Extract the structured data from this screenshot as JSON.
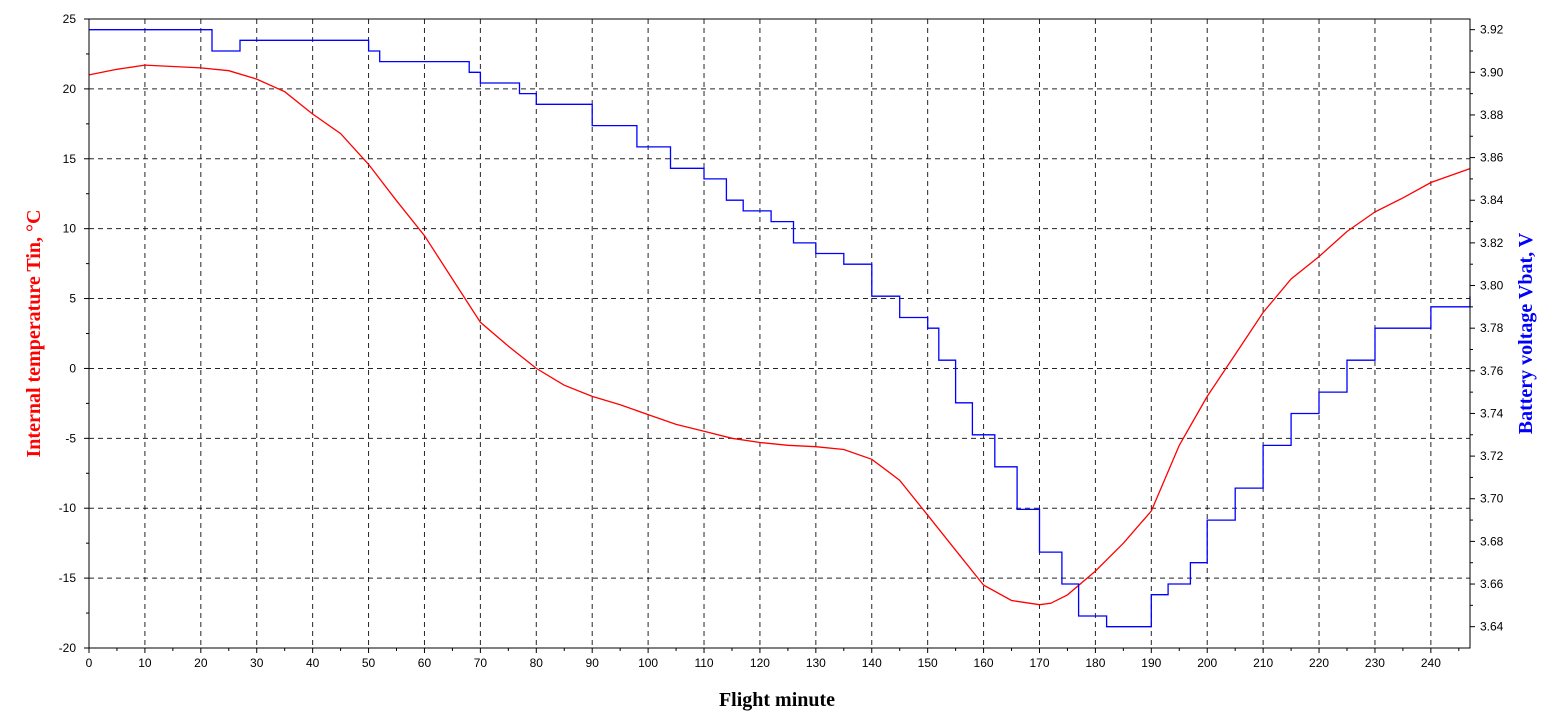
{
  "chart_data": {
    "type": "line",
    "xlabel": "Flight minute",
    "ylabel_left": "Internal temperature Tin, °C",
    "ylabel_right": "Battery voltage Vbat, V",
    "xlim": [
      0,
      247
    ],
    "ylim_left": [
      -20,
      25
    ],
    "ylim_right": [
      3.63,
      3.925
    ],
    "x_ticks": [
      0,
      10,
      20,
      30,
      40,
      50,
      60,
      70,
      80,
      90,
      100,
      110,
      120,
      130,
      140,
      150,
      160,
      170,
      180,
      190,
      200,
      210,
      220,
      230,
      240
    ],
    "y_left_ticks": [
      -20,
      -15,
      -10,
      -5,
      0,
      5,
      10,
      15,
      20,
      25
    ],
    "y_right_ticks": [
      "3.64",
      "3.66",
      "3.68",
      "3.70",
      "3.72",
      "3.74",
      "3.76",
      "3.78",
      "3.80",
      "3.82",
      "3.84",
      "3.86",
      "3.88",
      "3.90",
      "3.92"
    ],
    "grid": true,
    "colors": {
      "temperature": "#ff0000",
      "voltage": "#0000ff",
      "grid": "#000000"
    },
    "series": [
      {
        "axis": "left",
        "x": [
          0,
          5,
          10,
          15,
          20,
          25,
          30,
          35,
          40,
          45,
          50,
          55,
          60,
          65,
          70,
          75,
          80,
          85,
          90,
          95,
          100,
          105,
          110,
          115,
          120,
          125,
          130,
          135,
          140,
          145,
          150,
          155,
          160,
          165,
          170,
          172,
          175,
          180,
          185,
          190,
          195,
          200,
          205,
          210,
          215,
          220,
          225,
          230,
          235,
          240,
          247
        ],
        "y": [
          21.0,
          21.4,
          21.7,
          21.6,
          21.5,
          21.3,
          20.7,
          19.8,
          18.2,
          16.8,
          14.6,
          12.0,
          9.5,
          6.4,
          3.3,
          1.6,
          0.0,
          -1.2,
          -2.0,
          -2.6,
          -3.3,
          -4.0,
          -4.5,
          -5.0,
          -5.3,
          -5.5,
          -5.6,
          -5.8,
          -6.5,
          -8.0,
          -10.5,
          -13.0,
          -15.5,
          -16.6,
          -16.9,
          -16.8,
          -16.2,
          -14.5,
          -12.5,
          -10.2,
          -5.5,
          -2.0,
          1.0,
          4.0,
          6.4,
          8.0,
          9.8,
          11.2,
          12.2,
          13.3,
          14.3
        ]
      },
      {
        "axis": "right",
        "x": [
          0,
          10,
          20,
          22,
          27,
          35,
          45,
          50,
          52,
          60,
          68,
          70,
          77,
          80,
          90,
          98,
          104,
          110,
          114,
          117,
          122,
          126,
          130,
          135,
          140,
          145,
          150,
          152,
          155,
          158,
          162,
          166,
          170,
          174,
          177,
          182,
          186,
          190,
          193,
          197,
          200,
          205,
          210,
          215,
          220,
          225,
          230,
          240,
          247
        ],
        "y": [
          3.92,
          3.92,
          3.92,
          3.91,
          3.915,
          3.915,
          3.915,
          3.91,
          3.905,
          3.905,
          3.9,
          3.895,
          3.89,
          3.885,
          3.875,
          3.865,
          3.855,
          3.85,
          3.84,
          3.835,
          3.83,
          3.82,
          3.815,
          3.81,
          3.795,
          3.785,
          3.78,
          3.765,
          3.745,
          3.73,
          3.715,
          3.695,
          3.675,
          3.66,
          3.645,
          3.64,
          3.64,
          3.655,
          3.66,
          3.67,
          3.69,
          3.705,
          3.725,
          3.74,
          3.75,
          3.765,
          3.78,
          3.79,
          3.795
        ]
      }
    ]
  }
}
